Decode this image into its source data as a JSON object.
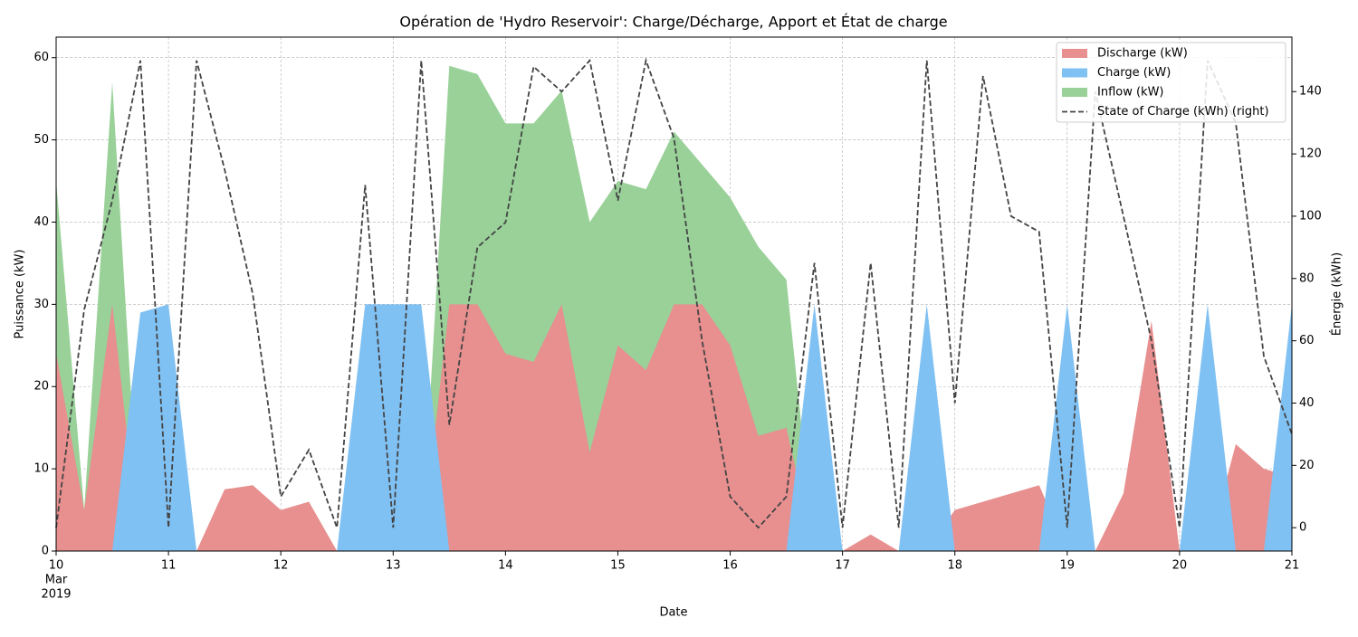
{
  "chart_data": {
    "type": "area",
    "title": "Opération de 'Hydro Reservoir': Charge/Décharge, Apport et État de charge",
    "xlabel": "Date",
    "ylabel": "Puissance (kW)",
    "y2label": "Énergie (kWh)",
    "x": [
      "2019-03-10 00:00",
      "2019-03-10 06:00",
      "2019-03-10 12:00",
      "2019-03-10 18:00",
      "2019-03-11 00:00",
      "2019-03-11 06:00",
      "2019-03-11 12:00",
      "2019-03-11 18:00",
      "2019-03-12 00:00",
      "2019-03-12 06:00",
      "2019-03-12 12:00",
      "2019-03-12 18:00",
      "2019-03-13 00:00",
      "2019-03-13 06:00",
      "2019-03-13 12:00",
      "2019-03-13 18:00",
      "2019-03-14 00:00",
      "2019-03-14 06:00",
      "2019-03-14 12:00",
      "2019-03-14 18:00",
      "2019-03-15 00:00",
      "2019-03-15 06:00",
      "2019-03-15 12:00",
      "2019-03-15 18:00",
      "2019-03-16 00:00",
      "2019-03-16 06:00",
      "2019-03-16 12:00",
      "2019-03-16 18:00",
      "2019-03-17 00:00",
      "2019-03-17 06:00",
      "2019-03-17 12:00",
      "2019-03-17 18:00",
      "2019-03-18 00:00",
      "2019-03-18 06:00",
      "2019-03-18 12:00",
      "2019-03-18 18:00",
      "2019-03-19 00:00",
      "2019-03-19 06:00",
      "2019-03-19 12:00",
      "2019-03-19 18:00",
      "2019-03-20 00:00",
      "2019-03-20 06:00",
      "2019-03-20 12:00",
      "2019-03-20 18:00",
      "2019-03-21 00:00"
    ],
    "series": [
      {
        "name": "Inflow (kW)",
        "color": "#99d199",
        "values": [
          45,
          5,
          57,
          0,
          0,
          0,
          0,
          0,
          0,
          0,
          0,
          0,
          0,
          0,
          59,
          58,
          52,
          52,
          56,
          40,
          45,
          44,
          51,
          47,
          43,
          37,
          33,
          0,
          0,
          0,
          0,
          0,
          0,
          0,
          0,
          0,
          0,
          0,
          0,
          0,
          0,
          0,
          0,
          0,
          0
        ]
      },
      {
        "name": "Discharge (kW)",
        "color": "#e88f8f",
        "values": [
          24,
          5,
          30,
          0,
          0,
          0,
          7.5,
          8,
          5,
          6,
          0,
          0,
          0,
          0,
          30,
          30,
          24,
          23,
          30,
          12,
          25,
          22,
          30,
          30,
          25,
          14,
          15,
          0,
          0,
          2,
          0,
          0,
          5,
          6,
          7,
          8,
          0,
          0,
          7,
          28,
          0,
          0,
          13,
          10,
          9
        ]
      },
      {
        "name": "Charge (kW)",
        "color": "#80c1f3",
        "values": [
          0,
          0,
          0,
          29,
          30,
          0,
          0,
          0,
          0,
          0,
          0,
          30,
          30,
          30,
          0,
          0,
          0,
          0,
          0,
          0,
          0,
          0,
          0,
          0,
          0,
          0,
          0,
          30,
          0,
          0,
          0,
          30,
          0,
          0,
          0,
          0,
          30,
          0,
          0,
          0,
          0,
          30,
          0,
          0,
          30
        ]
      },
      {
        "name": "State of Charge (kWh) (right)",
        "color": "#444444",
        "axis": "y2",
        "style": "dashed",
        "values": [
          0,
          70,
          105,
          150,
          0,
          150,
          115,
          75,
          10,
          25,
          0,
          110,
          0,
          150,
          33,
          90,
          98,
          148,
          140,
          150,
          105,
          150,
          125,
          60,
          10,
          0,
          10,
          85,
          0,
          85,
          0,
          150,
          40,
          145,
          100,
          95,
          0,
          140,
          100,
          60,
          0,
          150,
          130,
          55,
          30
        ]
      }
    ],
    "legend_order": [
      1,
      2,
      0,
      3
    ],
    "xlim": [
      "2019-03-10 00:00",
      "2019-03-21 00:00"
    ],
    "xticks": [
      {
        "value": "2019-03-10 00:00",
        "label": "10"
      },
      {
        "value": "2019-03-11 00:00",
        "label": "11"
      },
      {
        "value": "2019-03-12 00:00",
        "label": "12"
      },
      {
        "value": "2019-03-13 00:00",
        "label": "13"
      },
      {
        "value": "2019-03-14 00:00",
        "label": "14"
      },
      {
        "value": "2019-03-15 00:00",
        "label": "15"
      },
      {
        "value": "2019-03-16 00:00",
        "label": "16"
      },
      {
        "value": "2019-03-17 00:00",
        "label": "17"
      },
      {
        "value": "2019-03-18 00:00",
        "label": "18"
      },
      {
        "value": "2019-03-19 00:00",
        "label": "19"
      },
      {
        "value": "2019-03-20 00:00",
        "label": "20"
      },
      {
        "value": "2019-03-21 00:00",
        "label": "21"
      }
    ],
    "xtick_month": "Mar",
    "xtick_year": "2019",
    "ylim": [
      0,
      62.5
    ],
    "yticks": [
      0,
      10,
      20,
      30,
      40,
      50,
      60
    ],
    "y2lim": [
      -7.5,
      157.5
    ],
    "y2ticks": [
      0,
      20,
      40,
      60,
      80,
      100,
      120,
      140
    ],
    "grid": true,
    "legend": "upper right"
  }
}
